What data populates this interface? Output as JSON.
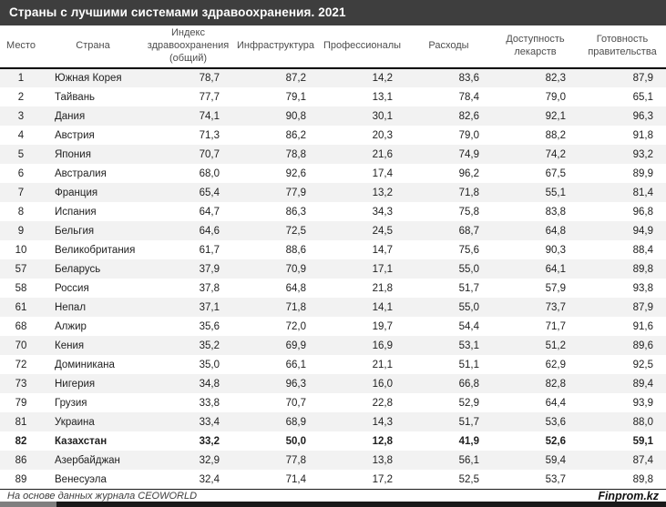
{
  "title": "Страны с лучшими системами здравоохранения. 2021",
  "chart_data": {
    "type": "table",
    "title": "Страны с лучшими системами здравоохранения. 2021",
    "columns": [
      "Место",
      "Страна",
      "Индекс здравоохранения (общий)",
      "Инфраструктура",
      "Профессионалы",
      "Расходы",
      "Доступность лекарств",
      "Готовность правительства"
    ],
    "rows": [
      {
        "rank": "1",
        "country": "Южная Корея",
        "values": [
          "78,7",
          "87,2",
          "14,2",
          "83,6",
          "82,3",
          "87,9"
        ],
        "highlight": false
      },
      {
        "rank": "2",
        "country": "Тайвань",
        "values": [
          "77,7",
          "79,1",
          "13,1",
          "78,4",
          "79,0",
          "65,1"
        ],
        "highlight": false
      },
      {
        "rank": "3",
        "country": "Дания",
        "values": [
          "74,1",
          "90,8",
          "30,1",
          "82,6",
          "92,1",
          "96,3"
        ],
        "highlight": false
      },
      {
        "rank": "4",
        "country": "Австрия",
        "values": [
          "71,3",
          "86,2",
          "20,3",
          "79,0",
          "88,2",
          "91,8"
        ],
        "highlight": false
      },
      {
        "rank": "5",
        "country": "Япония",
        "values": [
          "70,7",
          "78,8",
          "21,6",
          "74,9",
          "74,2",
          "93,2"
        ],
        "highlight": false
      },
      {
        "rank": "6",
        "country": "Австралия",
        "values": [
          "68,0",
          "92,6",
          "17,4",
          "96,2",
          "67,5",
          "89,9"
        ],
        "highlight": false
      },
      {
        "rank": "7",
        "country": "Франция",
        "values": [
          "65,4",
          "77,9",
          "13,2",
          "71,8",
          "55,1",
          "81,4"
        ],
        "highlight": false
      },
      {
        "rank": "8",
        "country": "Испания",
        "values": [
          "64,7",
          "86,3",
          "34,3",
          "75,8",
          "83,8",
          "96,8"
        ],
        "highlight": false
      },
      {
        "rank": "9",
        "country": "Бельгия",
        "values": [
          "64,6",
          "72,5",
          "24,5",
          "68,7",
          "64,8",
          "94,9"
        ],
        "highlight": false
      },
      {
        "rank": "10",
        "country": "Великобритания",
        "values": [
          "61,7",
          "88,6",
          "14,7",
          "75,6",
          "90,3",
          "88,4"
        ],
        "highlight": false
      },
      {
        "rank": "57",
        "country": "Беларусь",
        "values": [
          "37,9",
          "70,9",
          "17,1",
          "55,0",
          "64,1",
          "89,8"
        ],
        "highlight": false
      },
      {
        "rank": "58",
        "country": "Россия",
        "values": [
          "37,8",
          "64,8",
          "21,8",
          "51,7",
          "57,9",
          "93,8"
        ],
        "highlight": false
      },
      {
        "rank": "61",
        "country": "Непал",
        "values": [
          "37,1",
          "71,8",
          "14,1",
          "55,0",
          "73,7",
          "87,9"
        ],
        "highlight": false
      },
      {
        "rank": "68",
        "country": "Алжир",
        "values": [
          "35,6",
          "72,0",
          "19,7",
          "54,4",
          "71,7",
          "91,6"
        ],
        "highlight": false
      },
      {
        "rank": "70",
        "country": "Кения",
        "values": [
          "35,2",
          "69,9",
          "16,9",
          "53,1",
          "51,2",
          "89,6"
        ],
        "highlight": false
      },
      {
        "rank": "72",
        "country": "Доминикана",
        "values": [
          "35,0",
          "66,1",
          "21,1",
          "51,1",
          "62,9",
          "92,5"
        ],
        "highlight": false
      },
      {
        "rank": "73",
        "country": "Нигерия",
        "values": [
          "34,8",
          "96,3",
          "16,0",
          "66,8",
          "82,8",
          "89,4"
        ],
        "highlight": false
      },
      {
        "rank": "79",
        "country": "Грузия",
        "values": [
          "33,8",
          "70,7",
          "22,8",
          "52,9",
          "64,4",
          "93,9"
        ],
        "highlight": false
      },
      {
        "rank": "81",
        "country": "Украина",
        "values": [
          "33,4",
          "68,9",
          "14,3",
          "51,7",
          "53,6",
          "88,0"
        ],
        "highlight": false
      },
      {
        "rank": "82",
        "country": "Казахстан",
        "values": [
          "33,2",
          "50,0",
          "12,8",
          "41,9",
          "52,6",
          "59,1"
        ],
        "highlight": true
      },
      {
        "rank": "86",
        "country": "Азербайджан",
        "values": [
          "32,9",
          "77,8",
          "13,8",
          "56,1",
          "59,4",
          "87,4"
        ],
        "highlight": false
      },
      {
        "rank": "89",
        "country": "Венесуэла",
        "values": [
          "32,4",
          "71,4",
          "17,2",
          "52,5",
          "53,7",
          "89,8"
        ],
        "highlight": false
      }
    ]
  },
  "footer": {
    "source": "На основе данных журнала CEOWORLD",
    "brand": "Finprom.kz"
  },
  "colors": {
    "title_bar": "#3e3e3e",
    "stripe": "#f2f2f2",
    "header_rule": "#000000",
    "footer_bar_gray": "#7f7f7f",
    "footer_bar_dark": "#191919"
  }
}
